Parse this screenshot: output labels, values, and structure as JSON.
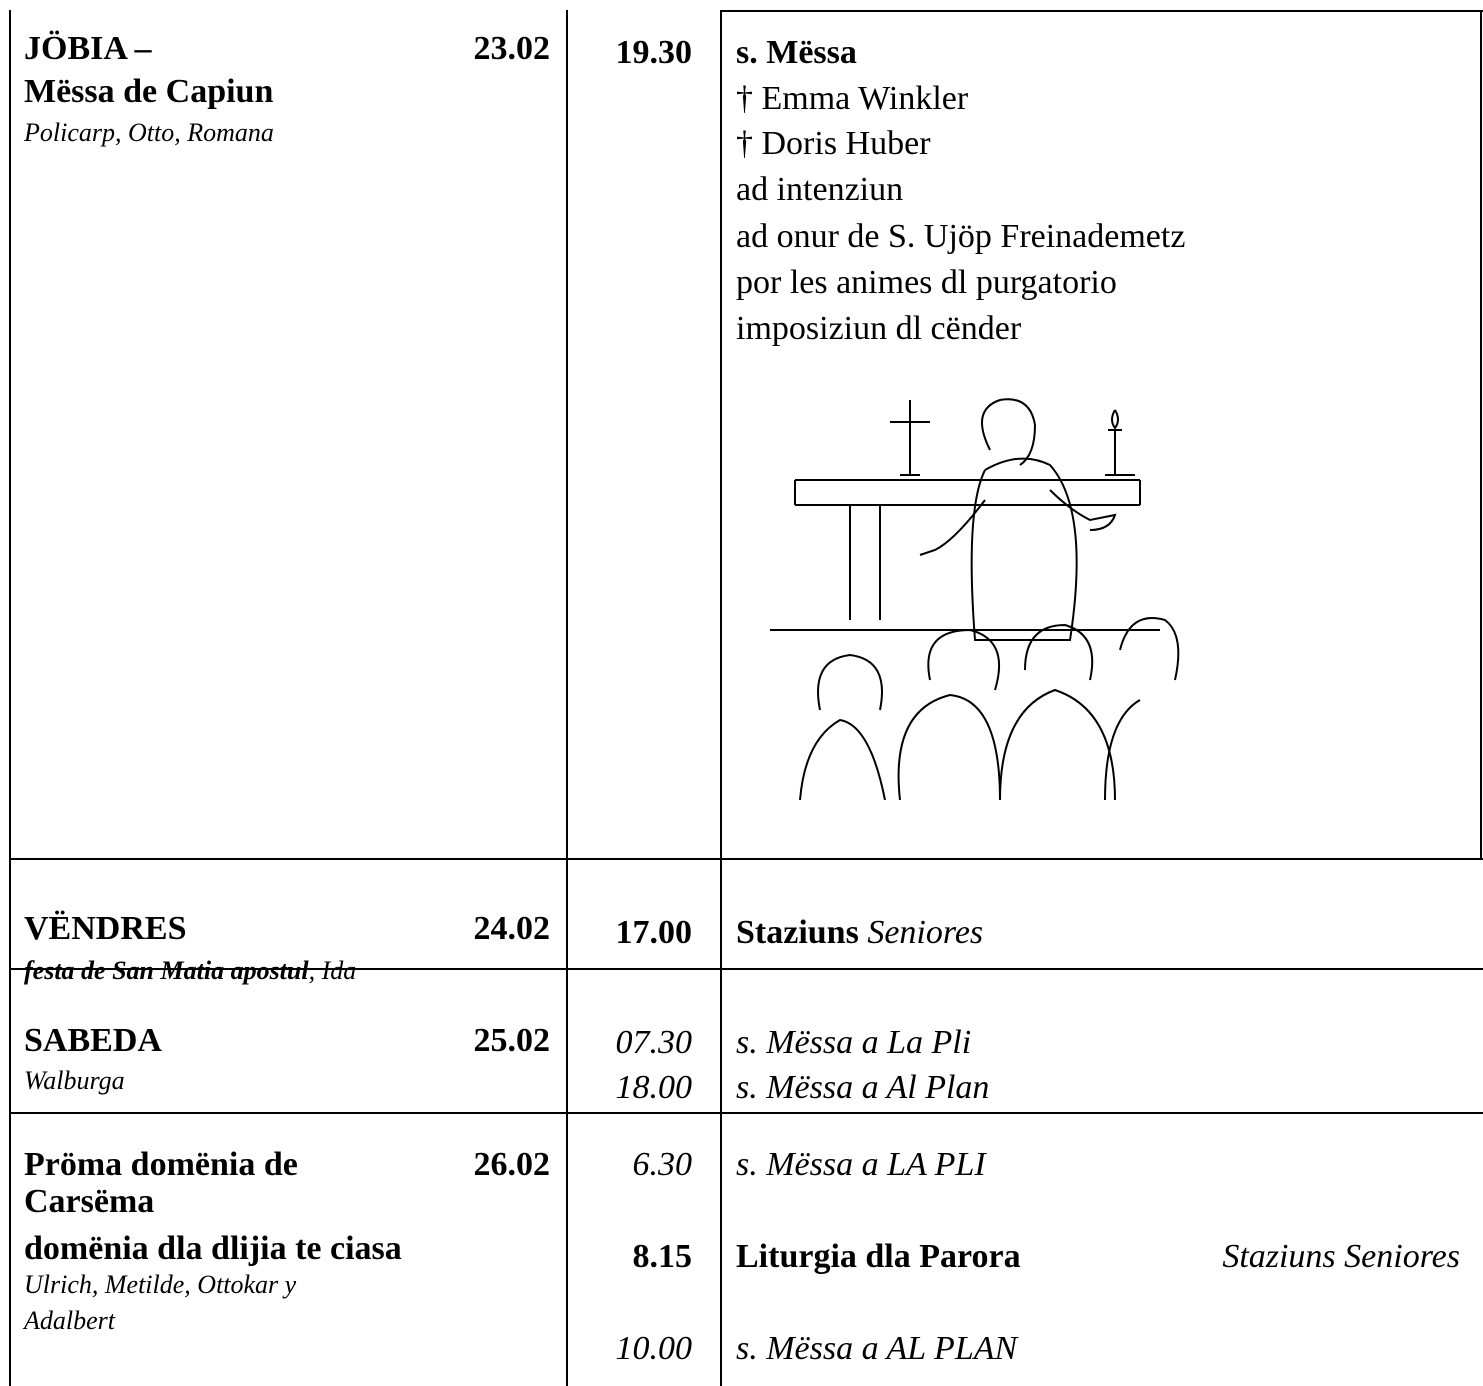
{
  "rows": [
    {
      "day": [
        "JÖBIA –",
        "Mëssa de Capiun"
      ],
      "saints": [
        "Policarp, Otto, Romana"
      ],
      "date": "23.02",
      "times": [
        "19.30"
      ],
      "entries": [
        "s. Mëssa",
        "† Emma Winkler",
        "† Doris Huber",
        "ad intenziun",
        "ad onur de S. Ujöp Freinademetz",
        "por les animes dl purgatorio",
        "imposiziun dl cënder"
      ]
    },
    {
      "day": [
        "VËNDRES"
      ],
      "saints_bold": "festa de San Matia apostul",
      "saints": [
        ", Ida"
      ],
      "date": "24.02",
      "times": [
        "17.00"
      ],
      "entries": [
        "Staziuns",
        "Seniores"
      ]
    },
    {
      "day": [
        "SABEDA"
      ],
      "saints": [
        "Walburga"
      ],
      "date": "25.02",
      "times": [
        "07.30",
        "18.00"
      ],
      "entries": [
        "s. Mëssa a La Pli",
        "s. Mëssa a Al Plan"
      ]
    },
    {
      "day": [
        "Pröma domënia de",
        "Carsëma",
        "domënia dla dlijia te ciasa"
      ],
      "saints": [
        "Ulrich, Metilde, Ottokar y",
        "Adalbert"
      ],
      "date": "26.02",
      "times": [
        "6.30",
        "8.15",
        "10.00"
      ],
      "entries": [
        "s. Mëssa a LA PLI",
        "Liturgia dla Parora",
        "Staziuns Seniores",
        "s. Mëssa a AL PLAN"
      ]
    }
  ]
}
